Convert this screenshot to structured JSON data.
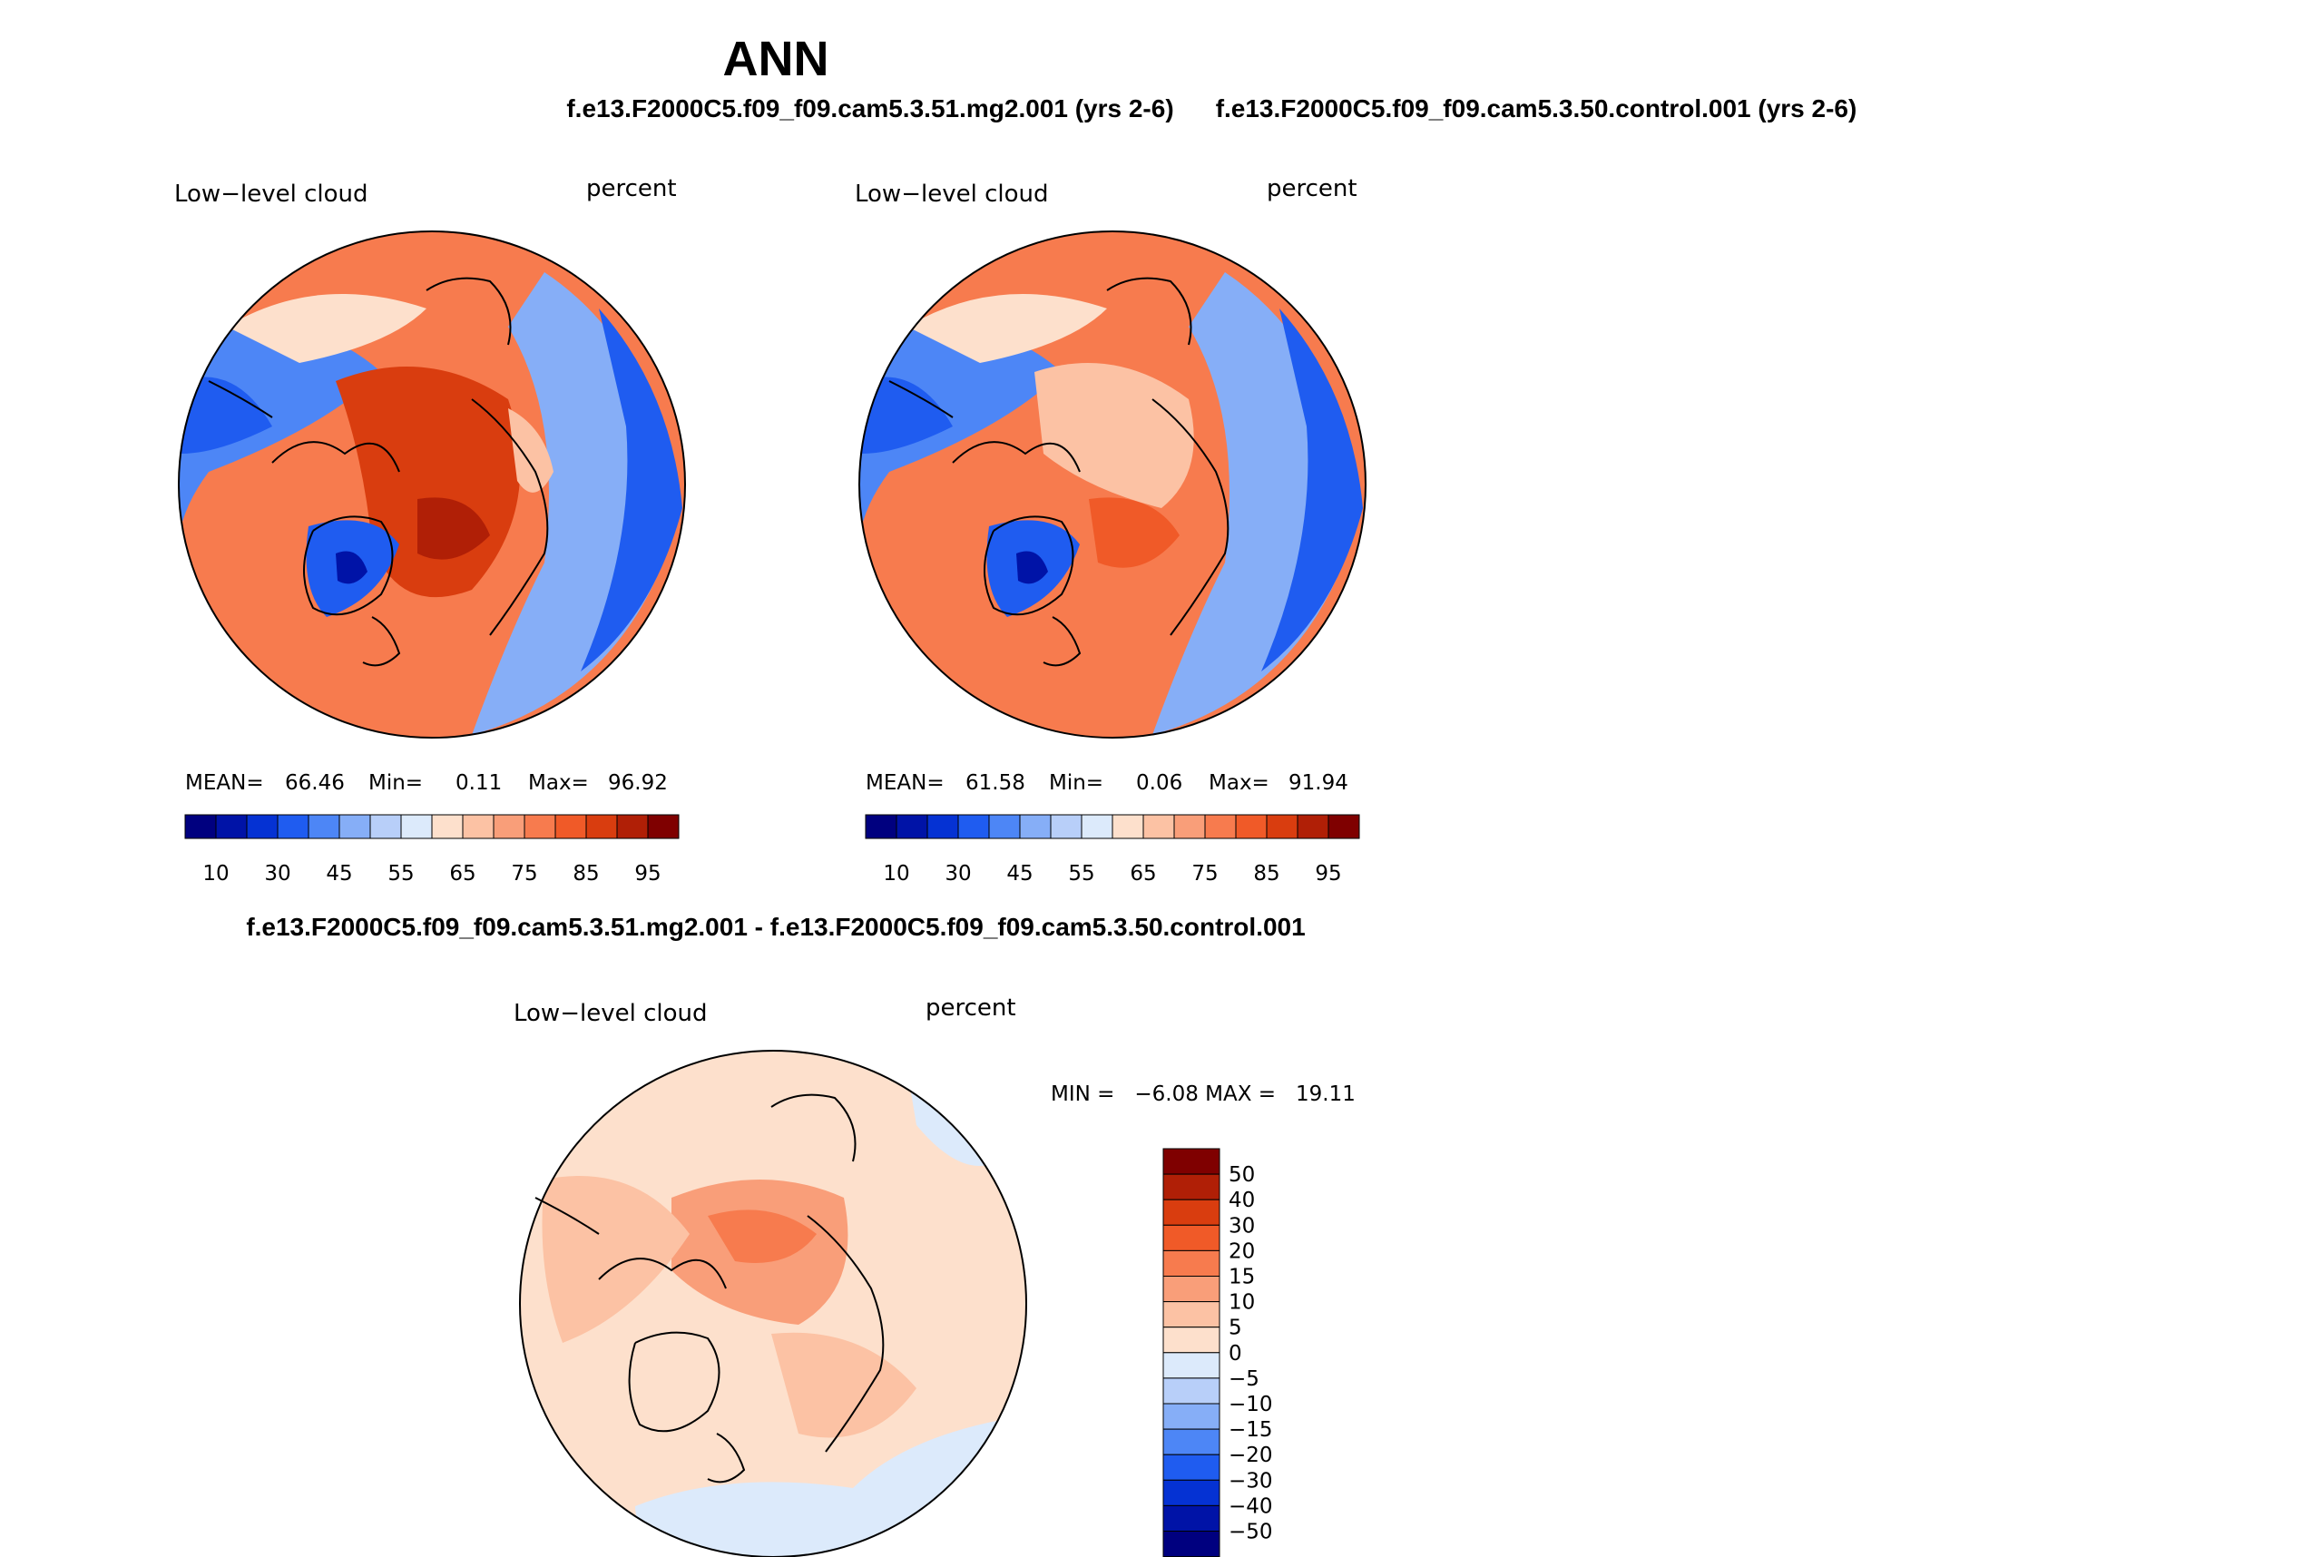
{
  "header": {
    "title": "ANN",
    "subtitle_left": "f.e13.F2000C5.f09_f09.cam5.3.51.mg2.001 (yrs 2-6)",
    "subtitle_right": "f.e13.F2000C5.f09_f09.cam5.3.50.control.001 (yrs 2-6)",
    "diff_title": "f.e13.F2000C5.f09_f09.cam5.3.51.mg2.001 - f.e13.F2000C5.f09_f09.cam5.3.50.control.001"
  },
  "chart_data": [
    {
      "type": "heatmap",
      "projection": "north-polar-stereographic",
      "variable": "Low−level cloud",
      "units": "percent",
      "stats": {
        "mean_label": "MEAN=",
        "mean": "66.46",
        "min_label": "Min=",
        "min": "0.11",
        "max_label": "Max=",
        "max": "96.92"
      },
      "levels": [
        "10",
        "30",
        "45",
        "55",
        "65",
        "75",
        "85",
        "95"
      ],
      "colors": [
        "#00007f",
        "#0013a7",
        "#0532d3",
        "#1f5cf0",
        "#4d86f6",
        "#86aef7",
        "#b8cff9",
        "#dceafb",
        "#fde0cc",
        "#fcc2a4",
        "#f99e79",
        "#f77b4e",
        "#f05a28",
        "#d93d0f",
        "#b01f06",
        "#7f0000"
      ]
    },
    {
      "type": "heatmap",
      "projection": "north-polar-stereographic",
      "variable": "Low−level cloud",
      "units": "percent",
      "stats": {
        "mean_label": "MEAN=",
        "mean": "61.58",
        "min_label": "Min=",
        "min": "0.06",
        "max_label": "Max=",
        "max": "91.94"
      },
      "levels": [
        "10",
        "30",
        "45",
        "55",
        "65",
        "75",
        "85",
        "95"
      ],
      "colors": [
        "#00007f",
        "#0013a7",
        "#0532d3",
        "#1f5cf0",
        "#4d86f6",
        "#86aef7",
        "#b8cff9",
        "#dceafb",
        "#fde0cc",
        "#fcc2a4",
        "#f99e79",
        "#f77b4e",
        "#f05a28",
        "#d93d0f",
        "#b01f06",
        "#7f0000"
      ]
    },
    {
      "type": "heatmap",
      "projection": "north-polar-stereographic",
      "variable": "Low−level cloud",
      "units": "percent",
      "stats_text": "MIN =   −6.08 MAX =   19.11",
      "levels": [
        "50",
        "40",
        "30",
        "20",
        "15",
        "10",
        "5",
        "0",
        "−5",
        "−10",
        "−15",
        "−20",
        "−30",
        "−40",
        "−50"
      ],
      "colors": [
        "#7f0000",
        "#b01f06",
        "#d93d0f",
        "#f05a28",
        "#f77b4e",
        "#f99e79",
        "#fcc2a4",
        "#fde0cc",
        "#dceafb",
        "#b8cff9",
        "#86aef7",
        "#4d86f6",
        "#1f5cf0",
        "#0532d3",
        "#0013a7",
        "#00007f"
      ]
    }
  ]
}
